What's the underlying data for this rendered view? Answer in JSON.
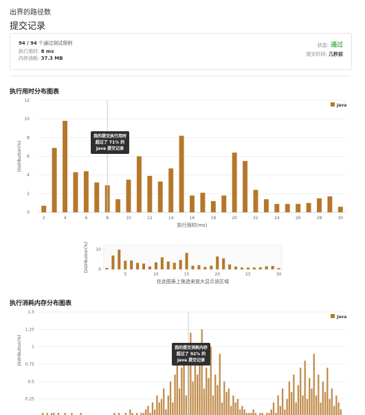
{
  "breadcrumb": "出界的路径数",
  "page_title": "提交记录",
  "summary": {
    "passed": "94 / 94",
    "passed_suffix": "个通过测试用例",
    "runtime_label": "执行用时:",
    "runtime_value": "8 ms",
    "memory_label": "内存消耗:",
    "memory_value": "37.3 MB",
    "status_label": "状态:",
    "status_value": "通过",
    "time_label": "提交时间:",
    "time_value": "几秒前"
  },
  "colors": {
    "bar": "#b5772a",
    "accent_ok": "#5cb85c",
    "tooltip_bg": "#2f2f2f",
    "marker": "#cccccc"
  },
  "runtime_section_title": "执行用时分布图表",
  "memory_section_title": "执行消耗内存分布图表",
  "chart_data": [
    {
      "type": "bar",
      "title": "",
      "xlabel": "执行用时(ms)",
      "ylabel": "Distribution(%)",
      "legend": {
        "label": "Java",
        "placement": "top-right"
      },
      "xlim": [
        1.5,
        30.5
      ],
      "ylim": [
        0,
        12
      ],
      "x_ticks": [
        2,
        4,
        6,
        8,
        10,
        12,
        14,
        16,
        18,
        20,
        22,
        24,
        26,
        28,
        30
      ],
      "y_ticks": [
        0,
        2,
        4,
        6,
        8,
        10,
        12
      ],
      "x": [
        2,
        3,
        4,
        5,
        6,
        7,
        8,
        9,
        10,
        11,
        12,
        13,
        14,
        15,
        16,
        17,
        18,
        19,
        20,
        21,
        22,
        23,
        24,
        25,
        26,
        27,
        28,
        29,
        30
      ],
      "values": [
        0.7,
        6.9,
        9.8,
        4.3,
        4.4,
        3.2,
        2.9,
        1.4,
        3.5,
        6.0,
        3.9,
        3.3,
        4.7,
        8.2,
        1.8,
        2.1,
        1.2,
        1.8,
        6.4,
        5.5,
        2.4,
        1.4,
        0.9,
        0.9,
        0.9,
        1.0,
        1.5,
        1.7,
        0.6
      ],
      "marker_x": 8,
      "tooltip": [
        "我的提交执行用时",
        "超过了 71% 的",
        "Java 提交记录"
      ]
    },
    {
      "type": "bar",
      "title": "",
      "xlabel": "在此图表上拖选来放大显示该区域",
      "ylabel": "Distribution(%)",
      "xlim": [
        1.5,
        30.5
      ],
      "ylim": [
        0,
        12
      ],
      "x_ticks": [
        5,
        10,
        15,
        20,
        25,
        30
      ],
      "y_ticks": [
        0,
        10
      ],
      "x": [
        2,
        3,
        4,
        5,
        6,
        7,
        8,
        9,
        10,
        11,
        12,
        13,
        14,
        15,
        16,
        17,
        18,
        19,
        20,
        21,
        22,
        23,
        24,
        25,
        26,
        27,
        28,
        29,
        30
      ],
      "values": [
        0.7,
        6.9,
        9.8,
        4.3,
        4.4,
        3.2,
        2.9,
        1.4,
        3.5,
        6.0,
        3.9,
        3.3,
        4.7,
        8.2,
        1.8,
        2.1,
        1.2,
        1.8,
        6.4,
        5.5,
        2.4,
        1.4,
        0.9,
        0.9,
        0.9,
        1.0,
        1.5,
        1.7,
        0.6
      ]
    },
    {
      "type": "bar",
      "title": "",
      "ylabel": "Distribution(%)",
      "legend": {
        "label": "Java",
        "placement": "top-right"
      },
      "ylim": [
        0,
        1.5
      ],
      "y_ticks": [
        0.25,
        0.5,
        0.75,
        1,
        1.25,
        1.5
      ],
      "marker": "left of tallest cluster",
      "tooltip": [
        "我的提交消耗内存",
        "超过了 92% 的",
        "Java 提交记录"
      ],
      "values": [
        0.05,
        0,
        0.05,
        0,
        0.05,
        0.05,
        0,
        0.05,
        0,
        0,
        0.05,
        0,
        0,
        0.05,
        0,
        0,
        0,
        0.05,
        0,
        0,
        0,
        0,
        0,
        0,
        0,
        0,
        0,
        0,
        0,
        0,
        0,
        0,
        0.05,
        0,
        0.05,
        0,
        0,
        0.05,
        0,
        0.1,
        0.05,
        0,
        0.05,
        0,
        0.05,
        0.05,
        0.1,
        0.15,
        0.05,
        0.2,
        0.1,
        0.3,
        0.2,
        0.25,
        0.4,
        0.1,
        0.3,
        0.5,
        0.2,
        0.6,
        0.9,
        0.4,
        0.7,
        1.05,
        0.3,
        0.8,
        1.2,
        0.5,
        0.9,
        0.6,
        0.85,
        1.25,
        0.4,
        0.7,
        0.55,
        1.0,
        0.3,
        0.6,
        0.45,
        0.9,
        0.2,
        0.5,
        0.35,
        0.4,
        0.15,
        0.3,
        0.2,
        0.25,
        0.1,
        0.15,
        0.1,
        0.05,
        0.05,
        0.05,
        0.1,
        0.05,
        0,
        0.05,
        0.05,
        0,
        0.05,
        0.05,
        0.1,
        0.2,
        0.05,
        0.3,
        0.15,
        0.4,
        0.1,
        0.25,
        0.5,
        0.35,
        0.6,
        0.2,
        0.45,
        0.7,
        0.3,
        0.8,
        0.25,
        0.55,
        0.4,
        0.9,
        0.3,
        0.6,
        0.2,
        0.5,
        0.35,
        0.7,
        0.25,
        0.4,
        0.15,
        0.3,
        0.2,
        0.1
      ]
    }
  ]
}
